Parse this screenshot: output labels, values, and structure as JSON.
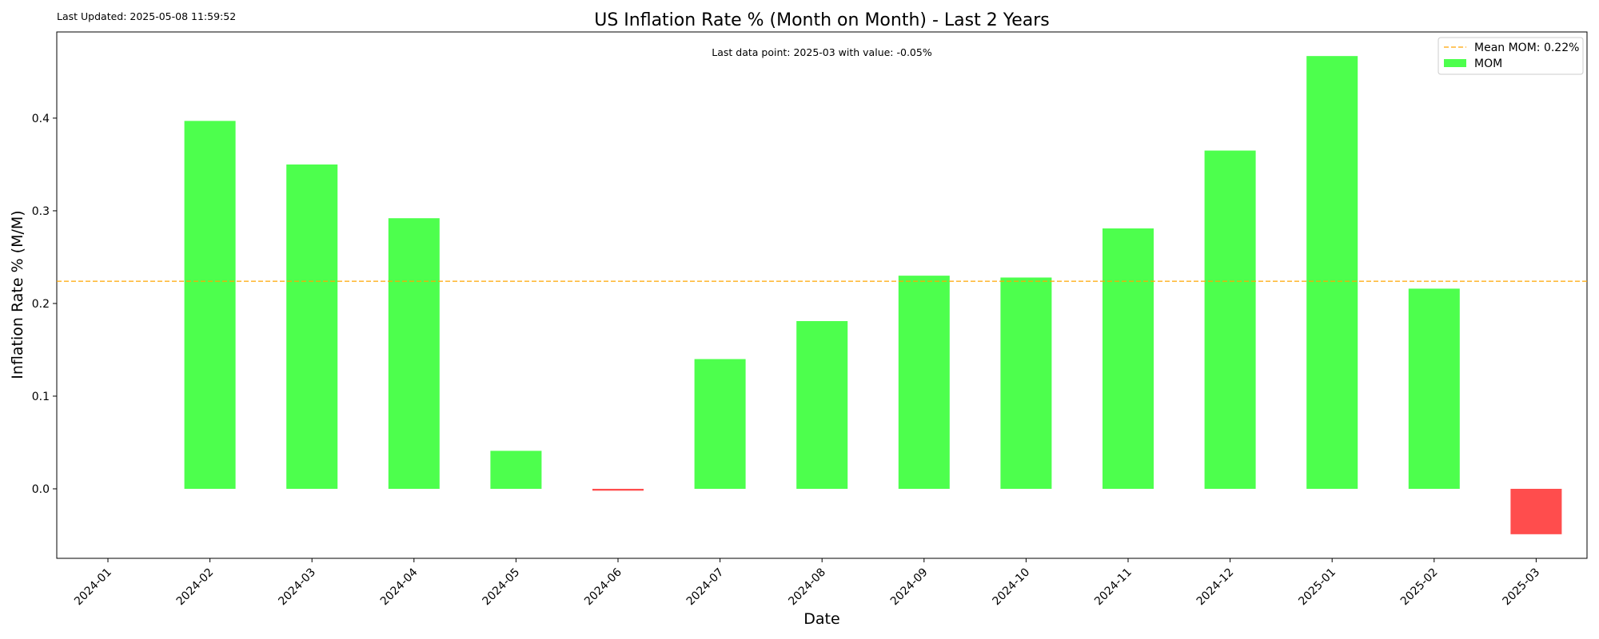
{
  "last_updated": "Last Updated: 2025-05-08 11:59:52",
  "annotation": "Last data point: 2025-03 with value: -0.05%",
  "colors": {
    "positive": "#4dff4d",
    "negative": "#ff4d4d",
    "mean_line": "#ffa500",
    "axis": "#000000"
  },
  "chart_data": {
    "type": "bar",
    "title": "US Inflation Rate % (Month on Month) - Last 2 Years",
    "xlabel": "Date",
    "ylabel": "Inflation Rate % (M/M)",
    "categories": [
      "2024-01",
      "2024-02",
      "2024-03",
      "2024-04",
      "2024-05",
      "2024-06",
      "2024-07",
      "2024-08",
      "2024-09",
      "2024-10",
      "2024-11",
      "2024-12",
      "2025-01",
      "2025-02",
      "2025-03"
    ],
    "series": [
      {
        "name": "MOM",
        "values": [
          null,
          0.397,
          0.35,
          0.292,
          0.041,
          -0.002,
          0.14,
          0.181,
          0.23,
          0.228,
          0.281,
          0.365,
          0.467,
          0.216,
          -0.049
        ]
      }
    ],
    "mean_line": {
      "label": "Mean MOM: 0.22%",
      "value": 0.224
    },
    "yticks": [
      0.0,
      0.1,
      0.2,
      0.3,
      0.4
    ],
    "ylim": [
      -0.075,
      0.493
    ],
    "grid": false,
    "legend": "top-right"
  }
}
